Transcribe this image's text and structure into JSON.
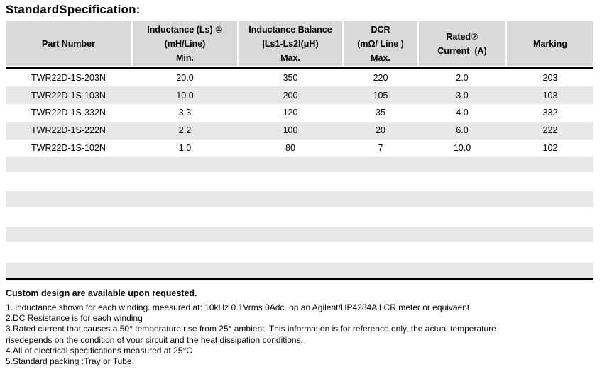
{
  "title": "StandardSpecification:",
  "table": {
    "columns": [
      {
        "id": "part-number",
        "lines": [
          "Part Number"
        ]
      },
      {
        "id": "inductance",
        "lines": [
          "Inductance (Ls) ①",
          "(mH/Line)",
          "Min."
        ]
      },
      {
        "id": "inductance-balance",
        "lines": [
          "Inductance Balance",
          "|Ls1-Ls2I(μH)",
          "Max."
        ]
      },
      {
        "id": "dcr",
        "lines": [
          "DCR",
          "(mΩ/ Line )",
          "Max."
        ]
      },
      {
        "id": "rated-current",
        "lines": [
          "Rated②",
          "Current  (A)"
        ]
      },
      {
        "id": "marking",
        "lines": [
          "Marking"
        ]
      }
    ],
    "rows": [
      [
        "TWR22D-1S-203N",
        "20.0",
        "350",
        "220",
        "2.0",
        "203"
      ],
      [
        "TWR22D-1S-103N",
        "10.0",
        "200",
        "105",
        "3.0",
        "103"
      ],
      [
        "TWR22D-1S-332N",
        "3.3",
        "120",
        "35",
        "4.0",
        "332"
      ],
      [
        "TWR22D-1S-222N",
        "2.2",
        "100",
        "20",
        "6.0",
        "222"
      ],
      [
        "TWR22D-1S-102N",
        "1.0",
        "80",
        "7",
        "10.0",
        "102"
      ]
    ]
  },
  "notes": {
    "heading": "Custom design are available upon requested.",
    "lines": [
      "1. inductance shown for each winding. measured at: 10kHz 0.1Vrms 0Adc. on an Agilent/HP4284A LCR meter or equivaent",
      "2.DC Resistance is for each winding",
      "3.Rated current that causes a 50° temperature rise from 25° ambient. This information is for reference only, the actual temperature",
      "risedepends on the condition of vour circuit and the heat dissipation conditions.",
      "4.All of electrical specifications measured at 25°C",
      "5.Standard packing :Tray or Tube."
    ]
  },
  "colors": {
    "header_bg": "#d9d9d9",
    "stripe_bg": "#e8e8e8",
    "rule": "#000000",
    "text": "#000000",
    "page_bg": "#ffffff"
  }
}
